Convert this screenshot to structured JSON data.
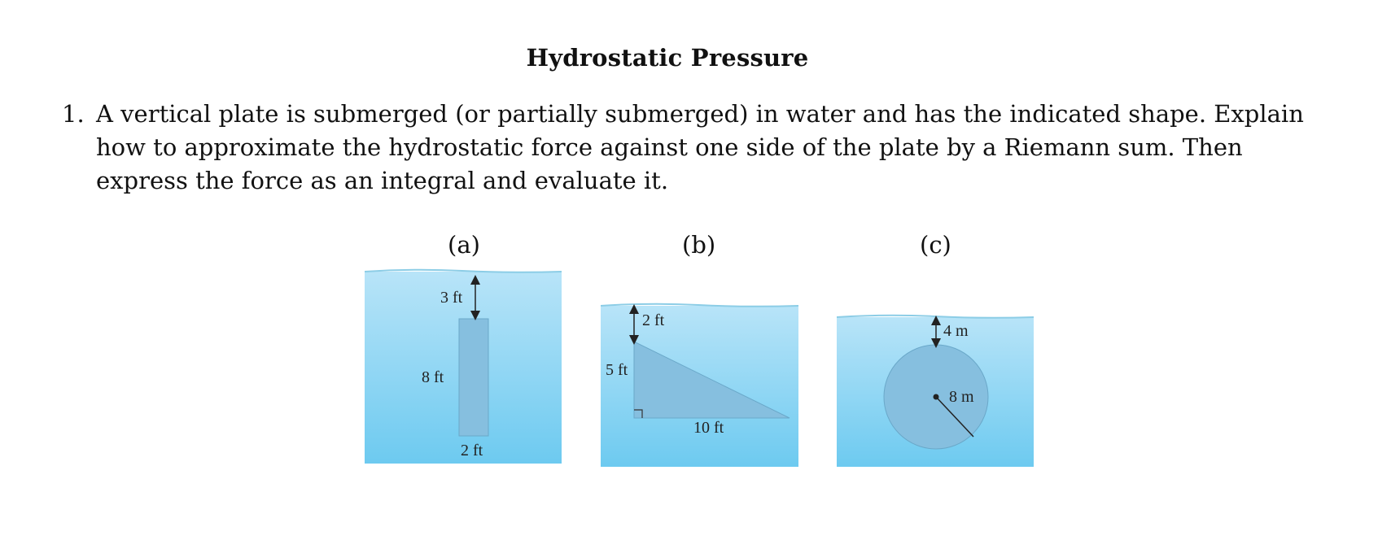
{
  "title": "Hydrostatic Pressure",
  "problem": {
    "number": "1.",
    "text": "A vertical plate is submerged (or partially submerged) in water and has the indicated shape. Explain how to approximate the hydrostatic force against one side of the plate by a Riemann sum. Then express the force as an integral and evaluate it."
  },
  "figures": {
    "a": {
      "caption": "(a)",
      "depth_label": "3 ft",
      "height_label": "8 ft",
      "width_label": "2 ft"
    },
    "b": {
      "caption": "(b)",
      "depth_label": "2 ft",
      "height_label": "5 ft",
      "base_label": "10 ft"
    },
    "c": {
      "caption": "(c)",
      "depth_label": "4 m",
      "radius_label": "8 m"
    }
  },
  "colors": {
    "water_top": "#b5e3f8",
    "water_bottom": "#6ecbf0",
    "plate": "#86bfdf",
    "surface": "#8fcfe8"
  }
}
